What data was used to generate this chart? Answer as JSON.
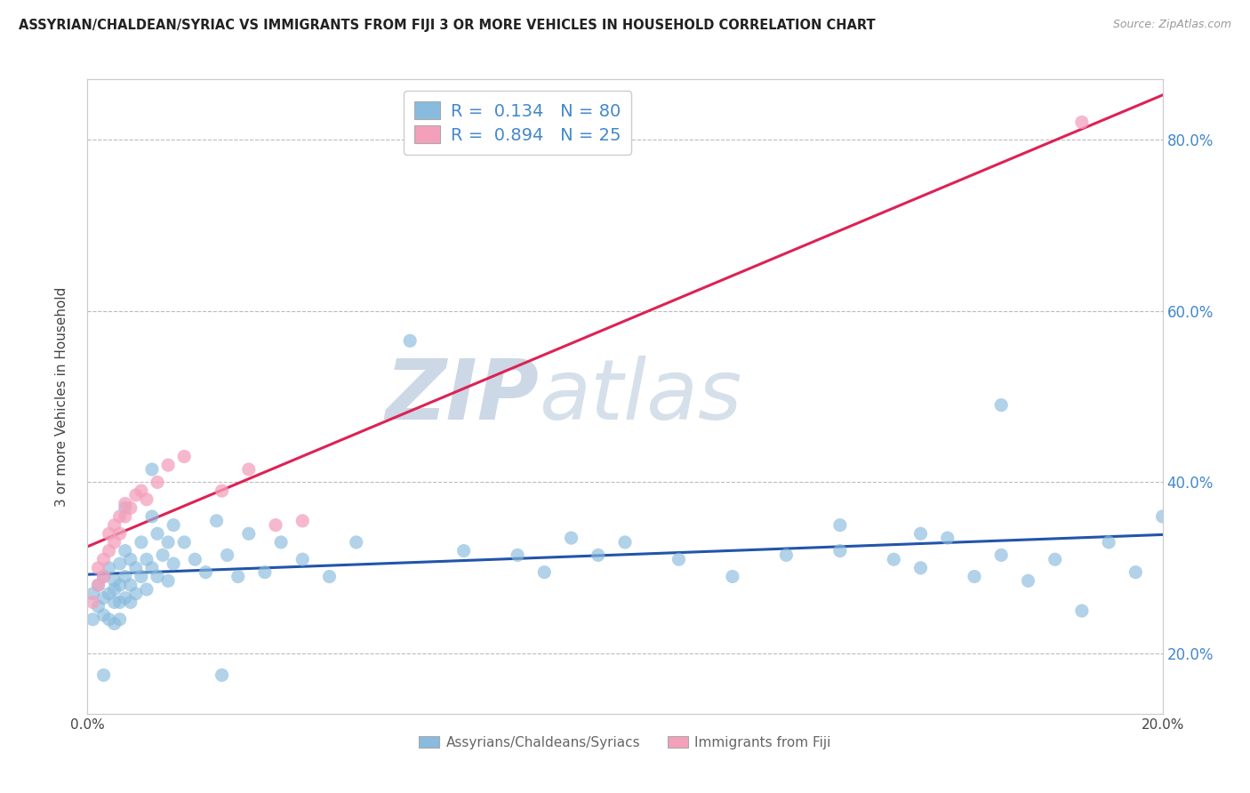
{
  "title": "ASSYRIAN/CHALDEAN/SYRIAC VS IMMIGRANTS FROM FIJI 3 OR MORE VEHICLES IN HOUSEHOLD CORRELATION CHART",
  "source": "Source: ZipAtlas.com",
  "xlabel_blue": "Assyrians/Chaldeans/Syriacs",
  "xlabel_pink": "Immigrants from Fiji",
  "ylabel": "3 or more Vehicles in Household",
  "watermark_zip": "ZIP",
  "watermark_atlas": "atlas",
  "xlim": [
    0.0,
    0.2
  ],
  "ylim": [
    0.13,
    0.87
  ],
  "xtick_pos": [
    0.0,
    0.04,
    0.08,
    0.12,
    0.16,
    0.2
  ],
  "xtick_labels": [
    "0.0%",
    "",
    "",
    "",
    "",
    "20.0%"
  ],
  "ytick_pos": [
    0.2,
    0.4,
    0.6,
    0.8
  ],
  "ytick_right_labels": [
    "20.0%",
    "40.0%",
    "60.0%",
    "80.0%"
  ],
  "legend_R_blue": "0.134",
  "legend_N_blue": "80",
  "legend_R_pink": "0.894",
  "legend_N_pink": "25",
  "blue_color": "#88bbdd",
  "pink_color": "#f4a0bb",
  "trendline_blue_color": "#2255aa",
  "trendline_pink_color": "#dd2255",
  "blue_scatter_x": [
    0.001,
    0.001,
    0.002,
    0.002,
    0.003,
    0.003,
    0.003,
    0.004,
    0.004,
    0.004,
    0.005,
    0.005,
    0.005,
    0.005,
    0.006,
    0.006,
    0.006,
    0.006,
    0.007,
    0.007,
    0.007,
    0.008,
    0.008,
    0.008,
    0.009,
    0.009,
    0.01,
    0.01,
    0.011,
    0.011,
    0.012,
    0.012,
    0.013,
    0.013,
    0.014,
    0.015,
    0.015,
    0.016,
    0.016,
    0.018,
    0.02,
    0.022,
    0.024,
    0.026,
    0.028,
    0.03,
    0.033,
    0.036,
    0.04,
    0.045,
    0.05,
    0.06,
    0.07,
    0.08,
    0.085,
    0.09,
    0.095,
    0.1,
    0.11,
    0.12,
    0.13,
    0.14,
    0.15,
    0.155,
    0.16,
    0.165,
    0.17,
    0.175,
    0.18,
    0.185,
    0.19,
    0.195,
    0.2,
    0.17,
    0.155,
    0.14,
    0.025,
    0.012,
    0.007,
    0.003
  ],
  "blue_scatter_y": [
    0.27,
    0.24,
    0.28,
    0.255,
    0.29,
    0.265,
    0.245,
    0.3,
    0.27,
    0.24,
    0.285,
    0.26,
    0.275,
    0.235,
    0.305,
    0.28,
    0.26,
    0.24,
    0.32,
    0.29,
    0.265,
    0.31,
    0.28,
    0.26,
    0.3,
    0.27,
    0.33,
    0.29,
    0.31,
    0.275,
    0.36,
    0.3,
    0.34,
    0.29,
    0.315,
    0.33,
    0.285,
    0.35,
    0.305,
    0.33,
    0.31,
    0.295,
    0.355,
    0.315,
    0.29,
    0.34,
    0.295,
    0.33,
    0.31,
    0.29,
    0.33,
    0.565,
    0.32,
    0.315,
    0.295,
    0.335,
    0.315,
    0.33,
    0.31,
    0.29,
    0.315,
    0.32,
    0.31,
    0.3,
    0.335,
    0.29,
    0.315,
    0.285,
    0.31,
    0.25,
    0.33,
    0.295,
    0.36,
    0.49,
    0.34,
    0.35,
    0.175,
    0.415,
    0.37,
    0.175
  ],
  "pink_scatter_x": [
    0.001,
    0.002,
    0.002,
    0.003,
    0.003,
    0.004,
    0.004,
    0.005,
    0.005,
    0.006,
    0.006,
    0.007,
    0.007,
    0.008,
    0.009,
    0.01,
    0.011,
    0.013,
    0.015,
    0.018,
    0.025,
    0.03,
    0.035,
    0.04,
    0.185
  ],
  "pink_scatter_y": [
    0.26,
    0.28,
    0.3,
    0.29,
    0.31,
    0.32,
    0.34,
    0.33,
    0.35,
    0.34,
    0.36,
    0.36,
    0.375,
    0.37,
    0.385,
    0.39,
    0.38,
    0.4,
    0.42,
    0.43,
    0.39,
    0.415,
    0.35,
    0.355,
    0.82
  ],
  "background_color": "#ffffff",
  "grid_color": "#bbbbbb",
  "watermark_color_zip": "#ccd8e5",
  "watermark_color_atlas": "#d5e0ea"
}
